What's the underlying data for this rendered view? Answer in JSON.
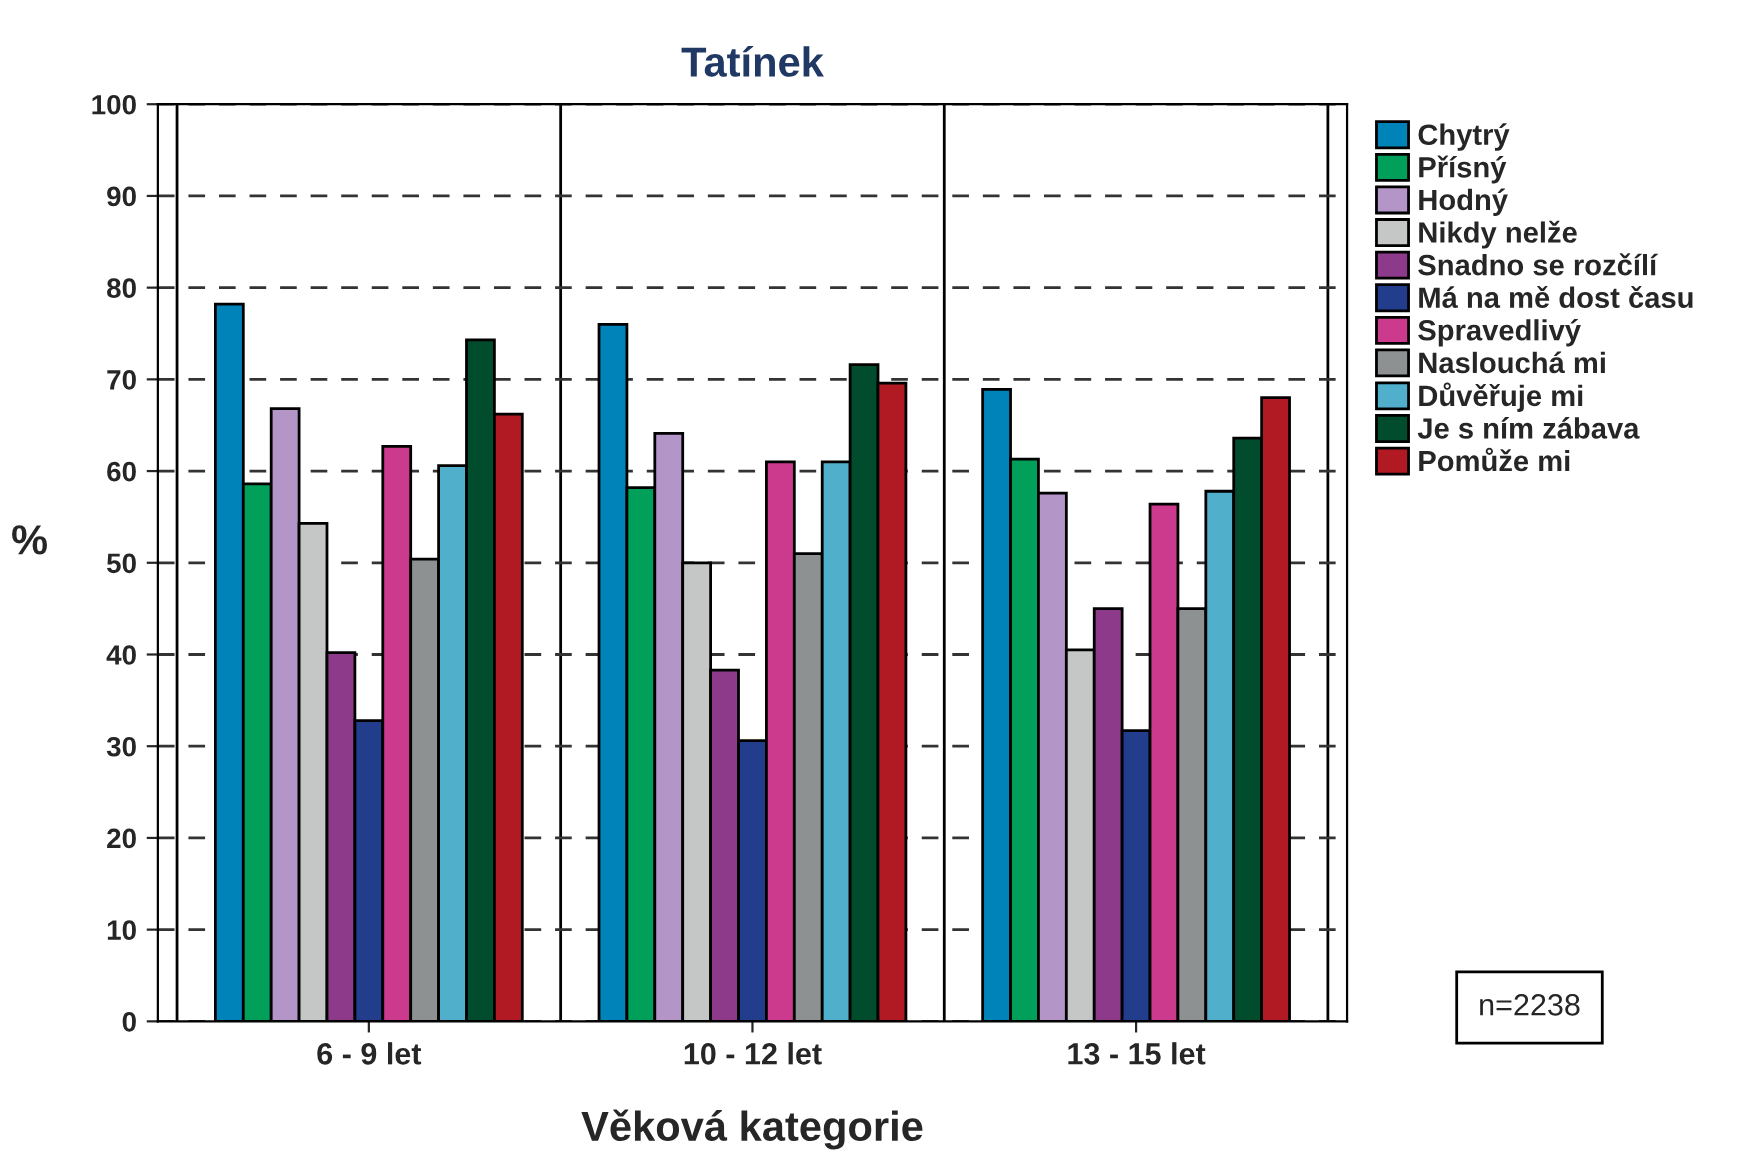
{
  "chart_data": {
    "type": "bar",
    "title": "Tatínek",
    "xlabel": "Věková kategorie",
    "ylabel": "%",
    "categories": [
      "6 - 9 let",
      "10 - 12 let",
      "13 - 15 let"
    ],
    "series": [
      {
        "name": "Chytrý",
        "color": "#0083b8",
        "values": [
          78.2,
          76.0,
          68.9
        ]
      },
      {
        "name": "Přísný",
        "color": "#00a05a",
        "values": [
          58.6,
          58.2,
          61.3
        ]
      },
      {
        "name": "Hodný",
        "color": "#b396c7",
        "values": [
          66.8,
          64.1,
          57.6
        ]
      },
      {
        "name": "Nikdy nelže",
        "color": "#c5c7c6",
        "values": [
          54.3,
          50.0,
          40.5
        ]
      },
      {
        "name": "Snadno se rozčílí",
        "color": "#8d3a8b",
        "values": [
          40.2,
          38.3,
          45.0
        ]
      },
      {
        "name": "Má na mě dost času",
        "color": "#213d8b",
        "values": [
          32.8,
          30.6,
          31.7
        ]
      },
      {
        "name": "Spravedlivý",
        "color": "#cb3a8d",
        "values": [
          62.7,
          61.0,
          56.4
        ]
      },
      {
        "name": "Naslouchá mi",
        "color": "#8e9192",
        "values": [
          50.4,
          51.0,
          45.0
        ]
      },
      {
        "name": "Důvěřuje mi",
        "color": "#50afcb",
        "values": [
          60.6,
          61.0,
          57.8
        ]
      },
      {
        "name": "Je s ním zábava",
        "color": "#004c2d",
        "values": [
          74.3,
          71.6,
          63.6
        ]
      },
      {
        "name": "Pomůže mi",
        "color": "#b11a23",
        "values": [
          66.2,
          69.6,
          68.0
        ]
      }
    ],
    "ylim": [
      0,
      100
    ],
    "yticks": [
      0,
      10,
      20,
      30,
      40,
      50,
      60,
      70,
      80,
      90,
      100
    ],
    "grid": "y",
    "legend": "right",
    "annotations": [
      "n=2238"
    ]
  }
}
